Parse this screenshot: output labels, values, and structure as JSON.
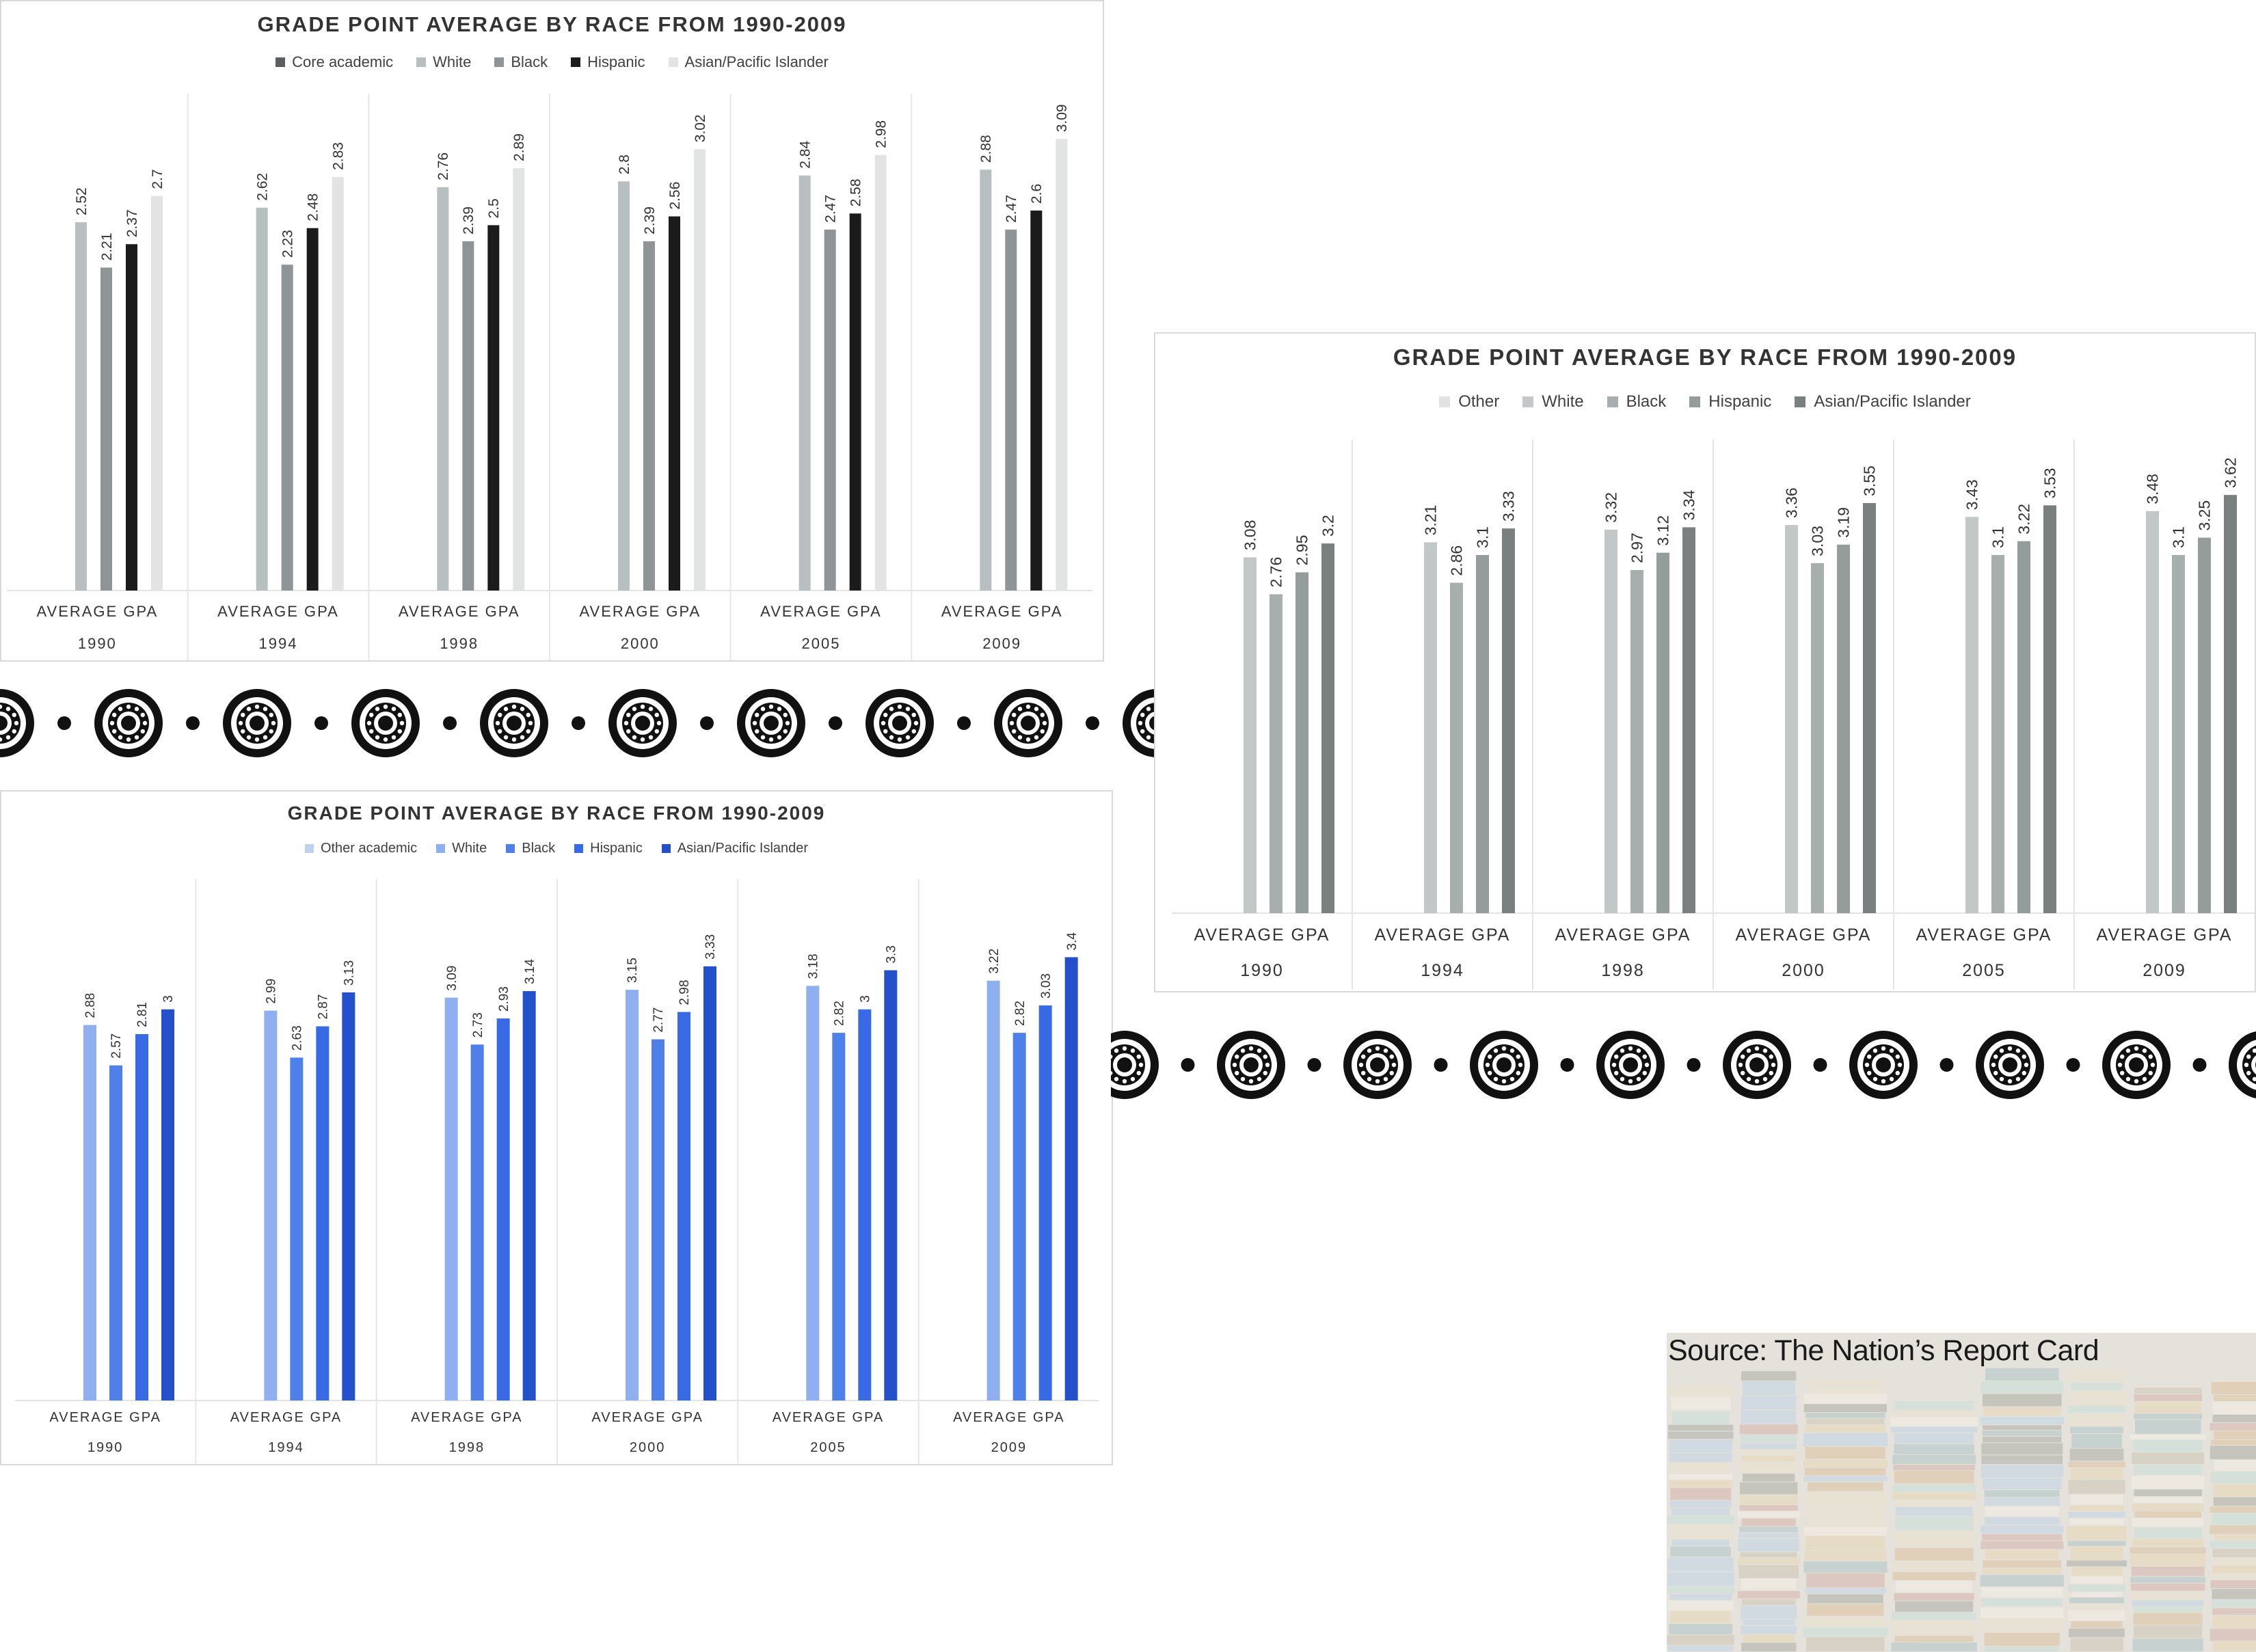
{
  "colors": {
    "top_palette": [
      "#5b5f62",
      "#b7bfc1",
      "#8f9597",
      "#1b1b1b",
      "#e1e4e3"
    ],
    "right_palette": [
      "#e1e3e2",
      "#c2c8c8",
      "#a6aeae",
      "#959c9c",
      "#7a8080"
    ],
    "bottom_palette": [
      "#bfd1ef",
      "#8eaff0",
      "#4f80ea",
      "#386ae6",
      "#2550cc"
    ]
  },
  "chart_data": [
    {
      "type": "bar",
      "title": "GRADE POINT AVERAGE BY RACE FROM 1990-2009",
      "legend_entries": [
        "Core academic",
        "White",
        "Black",
        "Hispanic",
        "Asian/Pacific Islander"
      ],
      "legend_placement": "top",
      "categories": [
        "1990",
        "1994",
        "1998",
        "2000",
        "2005",
        "2009"
      ],
      "category_sublabel": "AVERAGE GPA",
      "ylim": [
        0,
        3.4
      ],
      "grid": false,
      "series": [
        {
          "name": "White",
          "values": [
            2.52,
            2.62,
            2.76,
            2.8,
            2.84,
            2.88
          ]
        },
        {
          "name": "Black",
          "values": [
            2.21,
            2.23,
            2.39,
            2.39,
            2.47,
            2.47
          ]
        },
        {
          "name": "Hispanic",
          "values": [
            2.37,
            2.48,
            2.5,
            2.56,
            2.58,
            2.6
          ]
        },
        {
          "name": "Asian/Pacific Islander",
          "values": [
            2.7,
            2.83,
            2.89,
            3.02,
            2.98,
            3.09
          ]
        }
      ]
    },
    {
      "type": "bar",
      "title": "GRADE POINT AVERAGE BY RACE FROM 1990-2009",
      "legend_entries": [
        "Other",
        "White",
        "Black",
        "Hispanic",
        "Asian/Pacific Islander"
      ],
      "legend_placement": "top",
      "categories": [
        "1990",
        "1994",
        "1998",
        "2000",
        "2005",
        "2009"
      ],
      "category_sublabel": "AVERAGE GPA",
      "ylim": [
        0,
        4.1
      ],
      "grid": false,
      "series": [
        {
          "name": "White",
          "values": [
            3.08,
            3.21,
            3.32,
            3.36,
            3.43,
            3.48
          ]
        },
        {
          "name": "Black",
          "values": [
            2.76,
            2.86,
            2.97,
            3.03,
            3.1,
            3.1
          ]
        },
        {
          "name": "Hispanic",
          "values": [
            2.95,
            3.1,
            3.12,
            3.19,
            3.22,
            3.25
          ]
        },
        {
          "name": "Asian/Pacific Islander",
          "values": [
            3.2,
            3.33,
            3.34,
            3.55,
            3.53,
            3.62
          ]
        }
      ]
    },
    {
      "type": "bar",
      "title": "GRADE POINT AVERAGE BY RACE FROM 1990-2009",
      "legend_entries": [
        "Other academic",
        "White",
        "Black",
        "Hispanic",
        "Asian/Pacific Islander"
      ],
      "legend_placement": "top",
      "categories": [
        "1990",
        "1994",
        "1998",
        "2000",
        "2005",
        "2009"
      ],
      "category_sublabel": "AVERAGE GPA",
      "ylim": [
        0,
        4.0
      ],
      "grid": false,
      "series": [
        {
          "name": "White",
          "values": [
            2.88,
            2.99,
            3.09,
            3.15,
            3.18,
            3.22
          ]
        },
        {
          "name": "Black",
          "values": [
            2.57,
            2.63,
            2.73,
            2.77,
            2.82,
            2.82
          ]
        },
        {
          "name": "Hispanic",
          "values": [
            2.81,
            2.87,
            2.93,
            2.98,
            3,
            3.03
          ]
        },
        {
          "name": "Asian/Pacific Islander",
          "values": [
            3,
            3.13,
            3.14,
            3.33,
            3.3,
            3.4
          ]
        }
      ]
    }
  ],
  "source": {
    "text": "Source: The Nation’s Report Card"
  }
}
